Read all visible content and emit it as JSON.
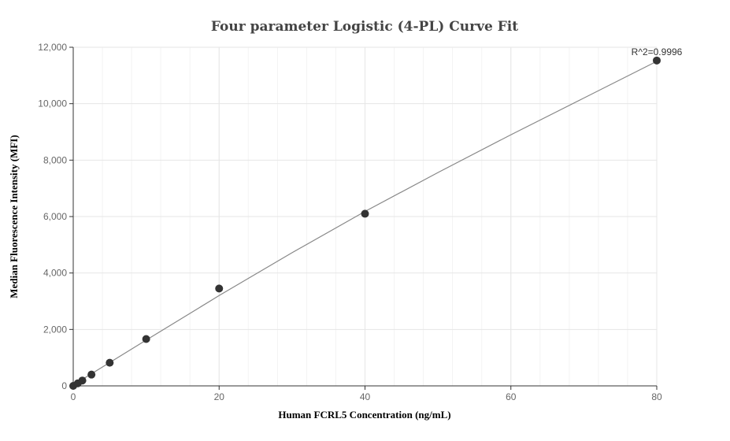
{
  "chart_data": {
    "type": "scatter",
    "title": "Four parameter Logistic (4-PL) Curve Fit",
    "xlabel": "Human FCRL5 Concentration (ng/mL)",
    "ylabel": "Median Fluorescence Intensity (MFI)",
    "xlim": [
      0,
      80
    ],
    "ylim": [
      0,
      12000
    ],
    "x_ticks": [
      0,
      20,
      40,
      60,
      80
    ],
    "y_ticks": [
      0,
      2000,
      4000,
      6000,
      8000,
      10000,
      12000
    ],
    "x_tick_labels": [
      "0",
      "20",
      "40",
      "60",
      "80"
    ],
    "y_tick_labels": [
      "0",
      "2,000",
      "4,000",
      "6,000",
      "8,000",
      "10,000",
      "12,000"
    ],
    "grid": true,
    "series": [
      {
        "points": [
          {
            "x": 0,
            "y": 0
          },
          {
            "x": 0.625,
            "y": 90
          },
          {
            "x": 1.25,
            "y": 190
          },
          {
            "x": 2.5,
            "y": 400
          },
          {
            "x": 5,
            "y": 820
          },
          {
            "x": 10,
            "y": 1660
          },
          {
            "x": 20,
            "y": 3450
          },
          {
            "x": 40,
            "y": 6100
          },
          {
            "x": 80,
            "y": 11530
          }
        ],
        "color": "#333333"
      }
    ],
    "fit_curve": {
      "color": "#888888",
      "points": [
        {
          "x": 0,
          "y": 30
        },
        {
          "x": 10,
          "y": 1620
        },
        {
          "x": 20,
          "y": 3200
        },
        {
          "x": 30,
          "y": 4720
        },
        {
          "x": 40,
          "y": 6180
        },
        {
          "x": 50,
          "y": 7560
        },
        {
          "x": 60,
          "y": 8900
        },
        {
          "x": 70,
          "y": 10200
        },
        {
          "x": 80,
          "y": 11500
        }
      ]
    },
    "annotation": {
      "text": "R^2=0.9996",
      "x": 80,
      "y": 11530
    }
  }
}
